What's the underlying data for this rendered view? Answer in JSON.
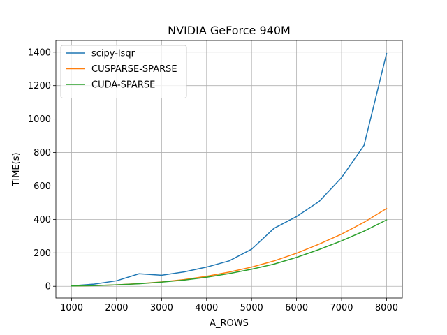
{
  "chart_data": {
    "type": "line",
    "title": "NVIDIA GeForce 940M",
    "xlabel": "A_ROWS",
    "ylabel": "TIME(s)",
    "xlim": [
      650,
      8350
    ],
    "ylim": [
      -70,
      1470
    ],
    "grid": true,
    "legend_position": "top-left",
    "xticks": [
      1000,
      2000,
      3000,
      4000,
      5000,
      6000,
      7000,
      8000
    ],
    "yticks": [
      0,
      200,
      400,
      600,
      800,
      1000,
      1200,
      1400
    ],
    "x": [
      1000,
      1500,
      2000,
      2500,
      3000,
      3500,
      4000,
      4500,
      5000,
      5500,
      6000,
      6500,
      7000,
      7500,
      8000
    ],
    "series": [
      {
        "name": "scipy-lsqr",
        "color": "#1f77b4",
        "values": [
          3,
          13,
          33,
          75,
          66,
          86,
          115,
          152,
          222,
          347,
          417,
          507,
          650,
          843,
          1392
        ]
      },
      {
        "name": "CUSPARSE-SPARSE",
        "color": "#ff7f0e",
        "values": [
          2,
          4,
          9,
          16,
          26,
          40,
          60,
          85,
          115,
          152,
          198,
          252,
          312,
          383,
          465
        ]
      },
      {
        "name": "CUDA-SPARSE",
        "color": "#2ca02c",
        "values": [
          2,
          4,
          9,
          15,
          25,
          37,
          54,
          76,
          102,
          133,
          173,
          220,
          272,
          330,
          397
        ]
      }
    ]
  }
}
